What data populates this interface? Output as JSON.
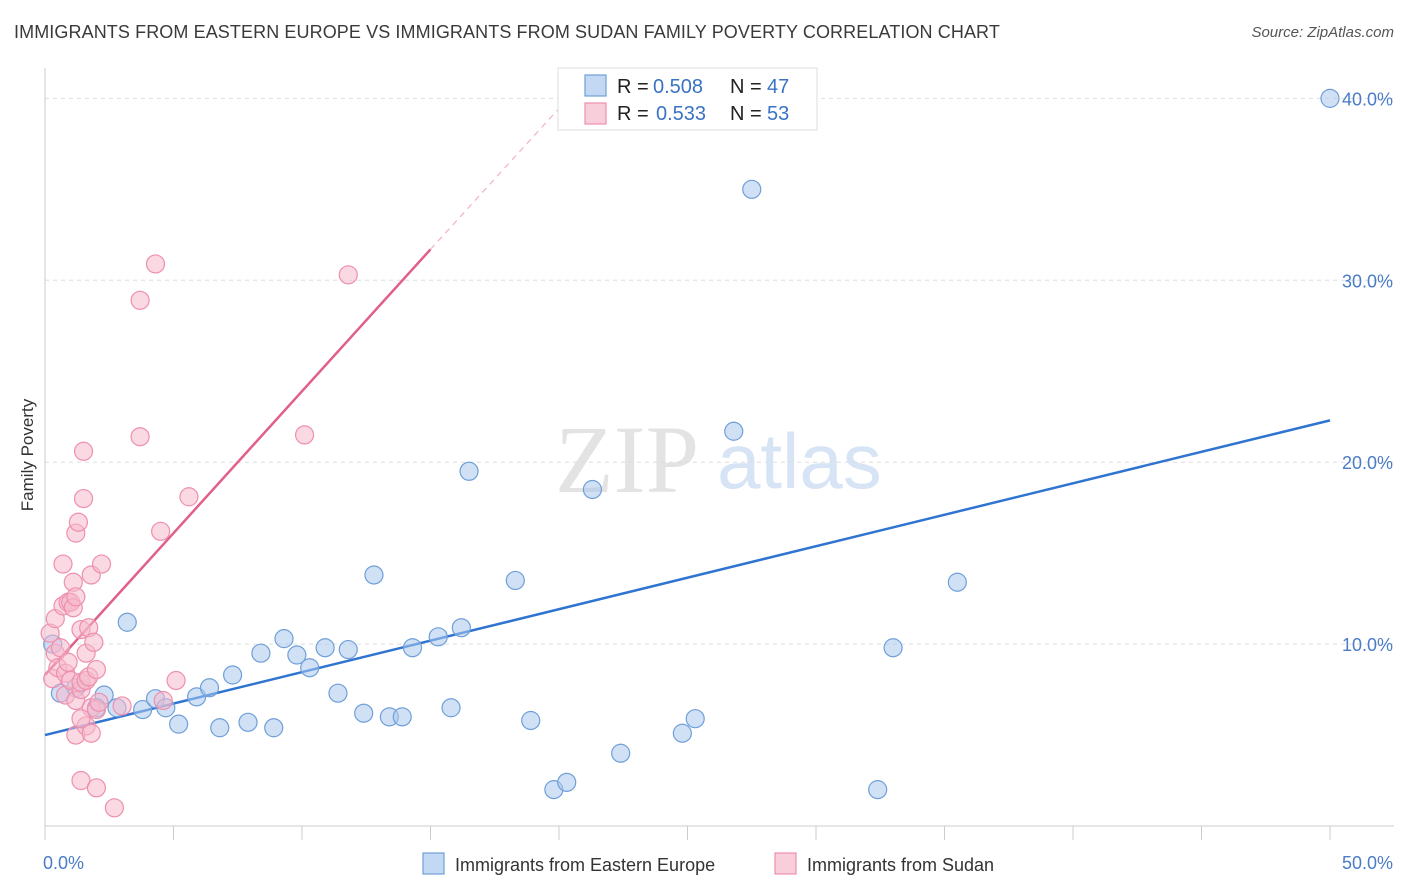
{
  "title": "IMMIGRANTS FROM EASTERN EUROPE VS IMMIGRANTS FROM SUDAN FAMILY POVERTY CORRELATION CHART",
  "source": "Source: ZipAtlas.com",
  "watermark": {
    "zip": "ZIP",
    "atlas": "atlas"
  },
  "colors": {
    "blue_fill": "#aac8ee",
    "blue_stroke": "#6f9fd8",
    "blue_line": "#2f74d0",
    "pink_fill": "#f6b9cc",
    "pink_stroke": "#ee8fae",
    "pink_line": "#e0608a",
    "tick_text": "#4a7cc7",
    "grid": "#dddddd"
  },
  "legend": {
    "rows": [
      {
        "r_label": "R =",
        "r_value": "0.508",
        "n_label": "N =",
        "n_value": "47"
      },
      {
        "r_label": "R =",
        "r_value": "0.533",
        "n_label": "N =",
        "n_value": "53"
      }
    ]
  },
  "bottom_legend": [
    "Immigrants from Eastern Europe",
    "Immigrants from Sudan"
  ],
  "chart_data": {
    "type": "scatter",
    "title": "IMMIGRANTS FROM EASTERN EUROPE VS IMMIGRANTS FROM SUDAN FAMILY POVERTY CORRELATION CHART",
    "xlabel": "",
    "ylabel": "Family Poverty",
    "xlim": [
      0,
      50
    ],
    "ylim": [
      0,
      42
    ],
    "x_tick_labels": [
      "0.0%",
      "50.0%"
    ],
    "y_ticks": [
      10,
      20,
      30,
      40
    ],
    "y_tick_labels": [
      "10.0%",
      "20.0%",
      "30.0%",
      "40.0%"
    ],
    "series": [
      {
        "name": "Immigrants from Eastern Europe",
        "R": 0.508,
        "N": 47,
        "trend": {
          "x": [
            0,
            50
          ],
          "y": [
            5.0,
            22.3
          ]
        },
        "points": [
          [
            0.3,
            10.0
          ],
          [
            0.6,
            7.3
          ],
          [
            1.2,
            7.6
          ],
          [
            2.3,
            7.2
          ],
          [
            2.8,
            6.5
          ],
          [
            3.2,
            11.2
          ],
          [
            3.8,
            6.4
          ],
          [
            4.3,
            7.0
          ],
          [
            4.7,
            6.5
          ],
          [
            5.2,
            5.6
          ],
          [
            5.9,
            7.1
          ],
          [
            6.4,
            7.6
          ],
          [
            6.8,
            5.4
          ],
          [
            7.3,
            8.3
          ],
          [
            7.9,
            5.7
          ],
          [
            8.4,
            9.5
          ],
          [
            8.9,
            5.4
          ],
          [
            9.3,
            10.3
          ],
          [
            9.8,
            9.4
          ],
          [
            10.3,
            8.7
          ],
          [
            10.9,
            9.8
          ],
          [
            11.4,
            7.3
          ],
          [
            11.8,
            9.7
          ],
          [
            12.4,
            6.2
          ],
          [
            12.8,
            13.8
          ],
          [
            13.4,
            6.0
          ],
          [
            13.9,
            6.0
          ],
          [
            14.3,
            9.8
          ],
          [
            15.3,
            10.4
          ],
          [
            15.8,
            6.5
          ],
          [
            16.2,
            10.9
          ],
          [
            16.5,
            19.5
          ],
          [
            18.3,
            13.5
          ],
          [
            18.9,
            5.8
          ],
          [
            19.8,
            2.0
          ],
          [
            20.3,
            2.4
          ],
          [
            21.3,
            18.5
          ],
          [
            22.4,
            4.0
          ],
          [
            24.8,
            5.1
          ],
          [
            25.3,
            5.9
          ],
          [
            26.8,
            21.7
          ],
          [
            27.5,
            35.0
          ],
          [
            32.4,
            2.0
          ],
          [
            33.0,
            9.8
          ],
          [
            35.5,
            13.4
          ],
          [
            50.0,
            40.0
          ],
          [
            2.0,
            6.5
          ]
        ]
      },
      {
        "name": "Immigrants from Sudan",
        "R": 0.533,
        "N": 53,
        "trend": {
          "x": [
            0,
            15
          ],
          "y": [
            8.3,
            31.7
          ]
        },
        "trend_extension": {
          "x": [
            15,
            21
          ],
          "y": [
            31.7,
            41.0
          ]
        },
        "points": [
          [
            0.2,
            10.6
          ],
          [
            0.3,
            8.1
          ],
          [
            0.4,
            9.5
          ],
          [
            0.4,
            11.4
          ],
          [
            0.5,
            8.7
          ],
          [
            0.6,
            9.8
          ],
          [
            0.7,
            12.1
          ],
          [
            0.7,
            14.4
          ],
          [
            0.8,
            7.2
          ],
          [
            0.8,
            8.4
          ],
          [
            0.9,
            12.3
          ],
          [
            1.0,
            12.3
          ],
          [
            1.0,
            8.0
          ],
          [
            1.1,
            12.0
          ],
          [
            1.1,
            13.4
          ],
          [
            1.2,
            12.6
          ],
          [
            1.2,
            6.9
          ],
          [
            1.2,
            5.0
          ],
          [
            1.2,
            16.1
          ],
          [
            1.3,
            16.7
          ],
          [
            1.4,
            10.8
          ],
          [
            1.4,
            7.5
          ],
          [
            1.4,
            7.9
          ],
          [
            1.4,
            2.5
          ],
          [
            1.5,
            18.0
          ],
          [
            1.5,
            20.6
          ],
          [
            1.6,
            9.5
          ],
          [
            1.6,
            8.0
          ],
          [
            1.6,
            5.5
          ],
          [
            1.7,
            10.9
          ],
          [
            1.7,
            8.2
          ],
          [
            1.8,
            6.5
          ],
          [
            1.8,
            13.8
          ],
          [
            1.8,
            5.1
          ],
          [
            1.9,
            10.1
          ],
          [
            2.0,
            8.6
          ],
          [
            2.0,
            2.1
          ],
          [
            2.0,
            6.4
          ],
          [
            2.1,
            6.8
          ],
          [
            2.2,
            14.4
          ],
          [
            2.7,
            1.0
          ],
          [
            3.0,
            6.6
          ],
          [
            3.7,
            28.9
          ],
          [
            3.7,
            21.4
          ],
          [
            4.3,
            30.9
          ],
          [
            4.5,
            16.2
          ],
          [
            4.6,
            6.9
          ],
          [
            5.1,
            8.0
          ],
          [
            5.6,
            18.1
          ],
          [
            10.1,
            21.5
          ],
          [
            11.8,
            30.3
          ],
          [
            1.4,
            5.9
          ],
          [
            0.9,
            9.0
          ]
        ]
      }
    ]
  }
}
